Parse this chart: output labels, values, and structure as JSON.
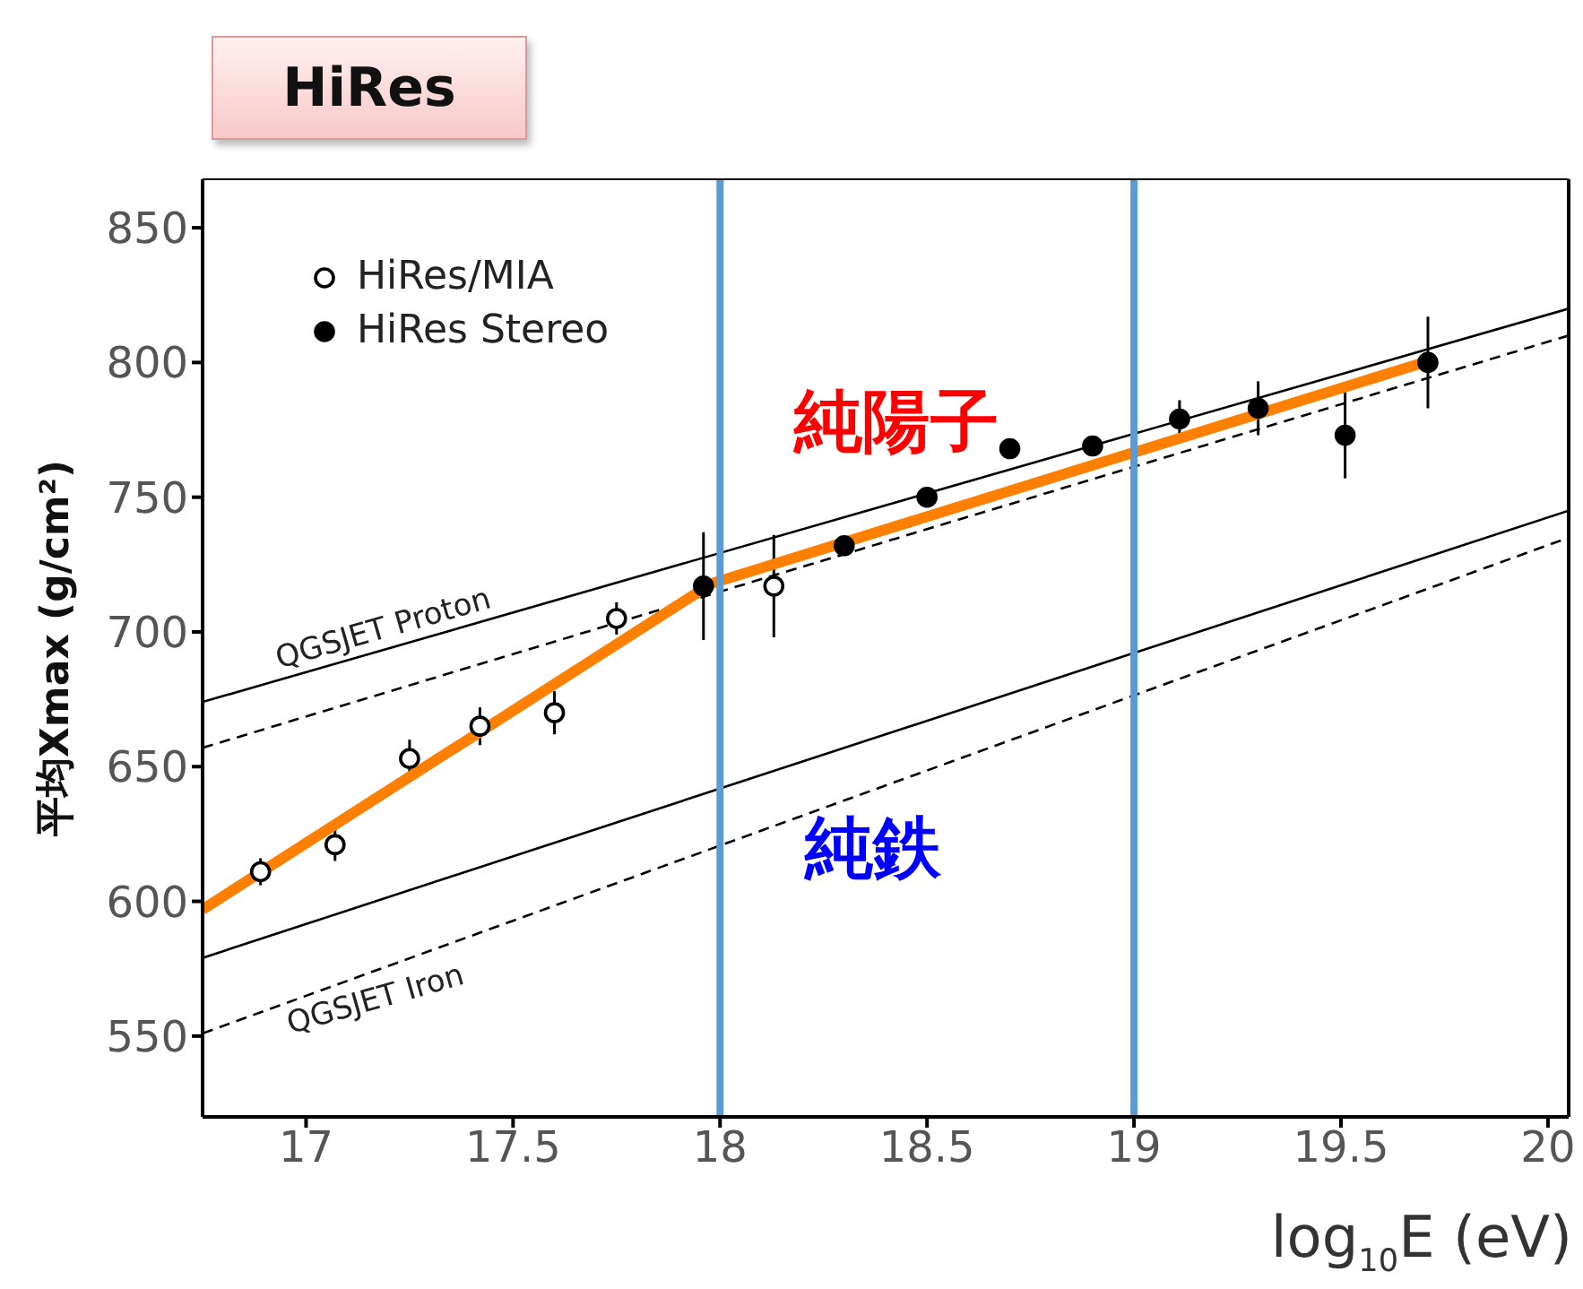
{
  "chart_data": {
    "type": "scatter",
    "title": "HiRes",
    "xlabel": "log$_{10}$E (eV)",
    "ylabel": "平均Xmax (g/cm²)",
    "xlim": [
      16.75,
      20.05
    ],
    "xticks": [
      17,
      17.5,
      18,
      18.5,
      19,
      19.5,
      20
    ],
    "ylim": [
      520,
      868
    ],
    "yticks": [
      550,
      600,
      650,
      700,
      750,
      800,
      850
    ],
    "grid": false,
    "legend": "top left",
    "series": [
      {
        "name": "HiRes/MIA",
        "marker": "circle",
        "color": "#000000",
        "x": [
          16.89,
          17.07,
          17.25,
          17.42,
          17.6,
          17.75,
          18.13
        ],
        "values": [
          611,
          621,
          653,
          665,
          670,
          705,
          717
        ],
        "errors": [
          5,
          6,
          7,
          7,
          8,
          6,
          19
        ]
      },
      {
        "name": "HiRes Stereo",
        "marker": "circle",
        "color": "#000000",
        "x": [
          17.96,
          18.3,
          18.5,
          18.7,
          18.9,
          19.11,
          19.3,
          19.51,
          19.71
        ],
        "values": [
          717,
          732,
          750,
          768,
          769,
          779,
          783,
          773,
          800
        ],
        "errors": [
          20,
          null,
          null,
          null,
          null,
          7,
          10,
          16,
          17
        ]
      },
      {
        "type": "line",
        "color": "#000000",
        "line_style": "solid",
        "x": [
          16.75,
          20.05
        ],
        "values": [
          674,
          820
        ]
      },
      {
        "type": "line",
        "color": "#000000",
        "line_style": "dashed",
        "x": [
          16.75,
          20.05
        ],
        "values": [
          657,
          810
        ]
      },
      {
        "type": "line",
        "color": "#000000",
        "line_style": "solid",
        "x": [
          16.75,
          20.05
        ],
        "values": [
          579,
          745
        ]
      },
      {
        "type": "line",
        "color": "#000000",
        "line_style": "dashed",
        "x": [
          16.75,
          20.05
        ],
        "values": [
          551,
          735
        ]
      },
      {
        "type": "line",
        "color": "#ff7f00",
        "line_style": "solid",
        "x": [
          16.75,
          17.98,
          19.7
        ],
        "values": [
          597,
          718,
          800
        ]
      }
    ],
    "ref_lines": [
      {
        "axis": "x",
        "value": 18,
        "color": "#5b9bd5"
      },
      {
        "axis": "x",
        "value": 19,
        "color": "#5b9bd5"
      }
    ],
    "annotations": [
      {
        "text": "QGSJET Proton",
        "x": 17.2,
        "y": 694
      },
      {
        "text": "QGSJET Iron",
        "x": 17.15,
        "y": 573
      },
      "純陽子",
      "純鉄"
    ]
  }
}
